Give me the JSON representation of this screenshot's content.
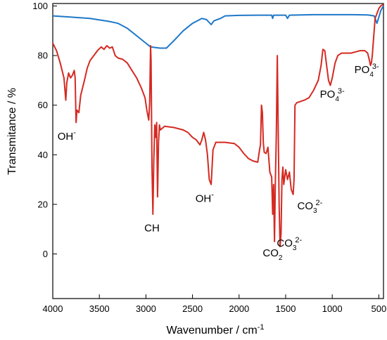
{
  "chart_data": {
    "type": "line",
    "xlabel": "Wavenumber /  cm",
    "xlabel_sup": "-1",
    "ylabel": "Transmitance / %",
    "xlim": [
      4000,
      450
    ],
    "ylim": [
      -18,
      101
    ],
    "x_ticks": [
      4000,
      3500,
      3000,
      2500,
      2000,
      1500,
      1000,
      500
    ],
    "y_ticks": [
      0,
      20,
      40,
      60,
      80,
      100
    ],
    "grid": false,
    "legend": "none",
    "series": [
      {
        "color": "#1f78c8",
        "points": [
          [
            4000,
            96
          ],
          [
            3800,
            95.5
          ],
          [
            3600,
            95
          ],
          [
            3400,
            93.8
          ],
          [
            3300,
            93
          ],
          [
            3200,
            91
          ],
          [
            3100,
            88
          ],
          [
            3000,
            85
          ],
          [
            2950,
            83.5
          ],
          [
            2850,
            83
          ],
          [
            2780,
            83
          ],
          [
            2700,
            86
          ],
          [
            2600,
            90
          ],
          [
            2500,
            93
          ],
          [
            2400,
            95
          ],
          [
            2350,
            94.5
          ],
          [
            2300,
            92.5
          ],
          [
            2270,
            94
          ],
          [
            2200,
            95
          ],
          [
            2150,
            96
          ],
          [
            2000,
            96.2
          ],
          [
            1800,
            96.3
          ],
          [
            1650,
            96.3
          ],
          [
            1640,
            95
          ],
          [
            1630,
            96.3
          ],
          [
            1500,
            96.3
          ],
          [
            1480,
            95
          ],
          [
            1460,
            96.3
          ],
          [
            1200,
            96.5
          ],
          [
            1000,
            96.5
          ],
          [
            800,
            96.5
          ],
          [
            620,
            96.4
          ],
          [
            550,
            96
          ],
          [
            520,
            93
          ],
          [
            500,
            95.5
          ],
          [
            480,
            98
          ],
          [
            460,
            99.5
          ],
          [
            450,
            100
          ]
        ]
      },
      {
        "color": "#d42a22",
        "points": [
          [
            4000,
            85
          ],
          [
            3960,
            82
          ],
          [
            3920,
            77
          ],
          [
            3880,
            71
          ],
          [
            3860,
            62
          ],
          [
            3850,
            69
          ],
          [
            3830,
            73
          ],
          [
            3810,
            71
          ],
          [
            3790,
            72
          ],
          [
            3770,
            74
          ],
          [
            3760,
            71
          ],
          [
            3750,
            53
          ],
          [
            3740,
            58
          ],
          [
            3720,
            57
          ],
          [
            3700,
            64
          ],
          [
            3660,
            70
          ],
          [
            3630,
            75
          ],
          [
            3600,
            78
          ],
          [
            3560,
            80
          ],
          [
            3520,
            82
          ],
          [
            3480,
            83.5
          ],
          [
            3450,
            82.5
          ],
          [
            3420,
            84
          ],
          [
            3390,
            83
          ],
          [
            3360,
            83.5
          ],
          [
            3330,
            80
          ],
          [
            3300,
            79
          ],
          [
            3250,
            78.5
          ],
          [
            3200,
            77
          ],
          [
            3150,
            74
          ],
          [
            3100,
            71
          ],
          [
            3050,
            67
          ],
          [
            3010,
            63
          ],
          [
            2990,
            58
          ],
          [
            2970,
            54
          ],
          [
            2960,
            61
          ],
          [
            2950,
            84
          ],
          [
            2945,
            78
          ],
          [
            2935,
            35
          ],
          [
            2925,
            16
          ],
          [
            2915,
            38
          ],
          [
            2905,
            52
          ],
          [
            2895,
            47
          ],
          [
            2885,
            53
          ],
          [
            2875,
            23
          ],
          [
            2865,
            45
          ],
          [
            2855,
            52
          ],
          [
            2845,
            50
          ],
          [
            2800,
            51.5
          ],
          [
            2700,
            51
          ],
          [
            2600,
            50
          ],
          [
            2550,
            49
          ],
          [
            2500,
            47
          ],
          [
            2460,
            46
          ],
          [
            2440,
            45
          ],
          [
            2420,
            44
          ],
          [
            2400,
            46
          ],
          [
            2380,
            49
          ],
          [
            2360,
            46
          ],
          [
            2340,
            40
          ],
          [
            2320,
            30
          ],
          [
            2300,
            28
          ],
          [
            2280,
            42
          ],
          [
            2250,
            45
          ],
          [
            2150,
            45
          ],
          [
            2050,
            44.5
          ],
          [
            2000,
            43
          ],
          [
            1950,
            40.5
          ],
          [
            1900,
            38.5
          ],
          [
            1850,
            37.5
          ],
          [
            1800,
            37
          ],
          [
            1780,
            42
          ],
          [
            1770,
            44
          ],
          [
            1760,
            60
          ],
          [
            1750,
            57
          ],
          [
            1740,
            45
          ],
          [
            1730,
            41
          ],
          [
            1710,
            40.5
          ],
          [
            1690,
            43
          ],
          [
            1670,
            33
          ],
          [
            1650,
            31
          ],
          [
            1640,
            16
          ],
          [
            1630,
            28
          ],
          [
            1620,
            5
          ],
          [
            1610,
            30
          ],
          [
            1600,
            48
          ],
          [
            1590,
            80
          ],
          [
            1580,
            50
          ],
          [
            1570,
            20
          ],
          [
            1560,
            3
          ],
          [
            1550,
            8
          ],
          [
            1540,
            30
          ],
          [
            1530,
            35
          ],
          [
            1520,
            28
          ],
          [
            1500,
            34
          ],
          [
            1480,
            30
          ],
          [
            1460,
            33
          ],
          [
            1440,
            26
          ],
          [
            1420,
            24
          ],
          [
            1410,
            30
          ],
          [
            1400,
            60
          ],
          [
            1380,
            61
          ],
          [
            1300,
            62
          ],
          [
            1250,
            63
          ],
          [
            1200,
            66
          ],
          [
            1150,
            70
          ],
          [
            1120,
            76
          ],
          [
            1100,
            82.5
          ],
          [
            1080,
            82
          ],
          [
            1060,
            76
          ],
          [
            1040,
            70
          ],
          [
            1020,
            68
          ],
          [
            1000,
            71
          ],
          [
            970,
            77
          ],
          [
            940,
            80
          ],
          [
            900,
            81
          ],
          [
            800,
            81
          ],
          [
            700,
            82
          ],
          [
            650,
            82
          ],
          [
            620,
            81
          ],
          [
            600,
            78
          ],
          [
            590,
            76
          ],
          [
            580,
            77
          ],
          [
            570,
            80
          ],
          [
            560,
            85
          ],
          [
            540,
            95
          ],
          [
            500,
            99
          ],
          [
            480,
            100
          ],
          [
            460,
            100.5
          ],
          [
            450,
            100.5
          ]
        ]
      }
    ],
    "annotations": [
      {
        "text": "OH",
        "sup": "-",
        "x": 3850,
        "y": 46
      },
      {
        "text": "CH",
        "x": 2935,
        "y": 9
      },
      {
        "text": "OH",
        "sup": "-",
        "x": 2370,
        "y": 21
      },
      {
        "text": "CO",
        "sub": "2",
        "x": 1640,
        "y": -1
      },
      {
        "text": "CO",
        "sub": "3",
        "sup": "2-",
        "x": 1460,
        "y": 3
      },
      {
        "text": "CO",
        "sub": "3",
        "sup": "2-",
        "x": 1240,
        "y": 18
      },
      {
        "text": "PO",
        "sub": "4",
        "sup": "3-",
        "x": 1000,
        "y": 63
      },
      {
        "text": "PO",
        "sub": "4",
        "sup": "3-",
        "x": 630,
        "y": 73
      }
    ]
  }
}
